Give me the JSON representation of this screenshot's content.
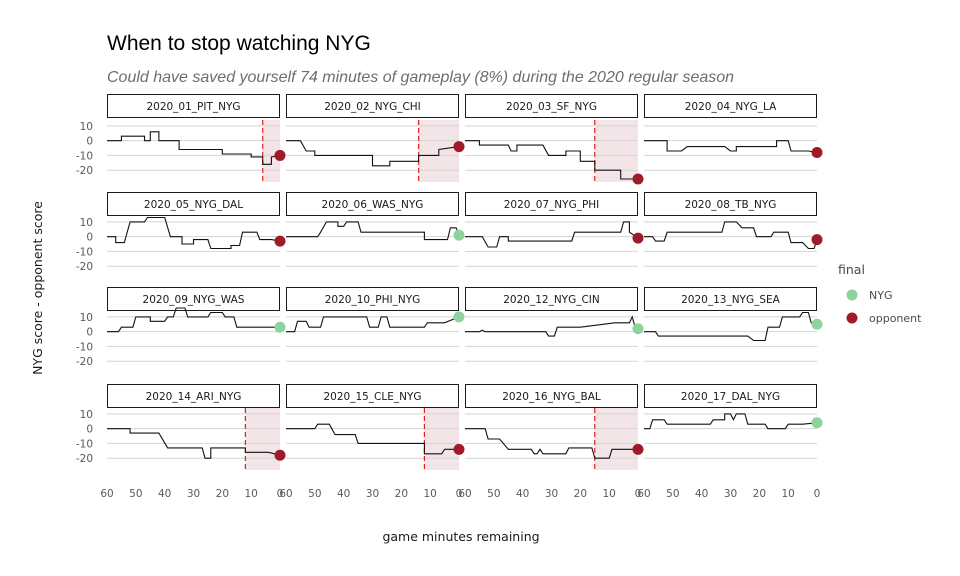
{
  "chart_data": {
    "type": "line",
    "title": "When to stop watching NYG",
    "subtitle": "Could have saved yourself 74 minutes of gameplay (8%) during the 2020 regular season",
    "xlabel": "game minutes remaining",
    "ylabel": "NYG score - opponent score",
    "xlim": [
      60,
      0
    ],
    "ylim": [
      -28,
      14
    ],
    "x_ticks": [
      60,
      50,
      40,
      30,
      20,
      10,
      0
    ],
    "y_ticks": [
      10,
      0,
      -10,
      -20
    ],
    "legend": {
      "title": "final",
      "position": "right",
      "entries": [
        {
          "label": "NYG",
          "color": "#8ed39e"
        },
        {
          "label": "opponent",
          "color": "#a01b29"
        }
      ]
    },
    "colors": {
      "line": "#111111",
      "cutoff": "#e02020",
      "shade": "#f3e4e7",
      "gridline": "#d4d4d4"
    },
    "panels": [
      {
        "name": "2020_01_PIT_NYG",
        "final": "opponent",
        "cutoff": 6,
        "points": [
          [
            60,
            0
          ],
          [
            55,
            0
          ],
          [
            55,
            3
          ],
          [
            47,
            3
          ],
          [
            47,
            0
          ],
          [
            45,
            0
          ],
          [
            45,
            6
          ],
          [
            42,
            6
          ],
          [
            42,
            0
          ],
          [
            35,
            0
          ],
          [
            35,
            -6
          ],
          [
            20,
            -6
          ],
          [
            20,
            -9
          ],
          [
            10,
            -9
          ],
          [
            10,
            -11
          ],
          [
            6,
            -11
          ],
          [
            6,
            -16
          ],
          [
            3,
            -16
          ],
          [
            3,
            -11
          ],
          [
            0,
            -10
          ]
        ]
      },
      {
        "name": "2020_02_NYG_CHI",
        "final": "opponent",
        "cutoff": 14,
        "points": [
          [
            60,
            0
          ],
          [
            55,
            0
          ],
          [
            53,
            -7
          ],
          [
            50,
            -7
          ],
          [
            50,
            -10
          ],
          [
            30,
            -10
          ],
          [
            30,
            -17
          ],
          [
            24,
            -17
          ],
          [
            24,
            -14
          ],
          [
            14,
            -14
          ],
          [
            14,
            -10
          ],
          [
            7,
            -10
          ],
          [
            7,
            -6
          ],
          [
            0,
            -4
          ]
        ]
      },
      {
        "name": "2020_03_SF_NYG",
        "final": "opponent",
        "cutoff": 15,
        "points": [
          [
            60,
            0
          ],
          [
            55,
            0
          ],
          [
            55,
            -3
          ],
          [
            45,
            -3
          ],
          [
            44,
            -7
          ],
          [
            42,
            -7
          ],
          [
            42,
            -3
          ],
          [
            33,
            -3
          ],
          [
            31,
            -10
          ],
          [
            25,
            -10
          ],
          [
            25,
            -7
          ],
          [
            20,
            -7
          ],
          [
            20,
            -14
          ],
          [
            15,
            -14
          ],
          [
            15,
            -20
          ],
          [
            6,
            -20
          ],
          [
            6,
            -26
          ],
          [
            0,
            -26
          ]
        ]
      },
      {
        "name": "2020_04_NYG_LA",
        "final": "opponent",
        "cutoff": null,
        "points": [
          [
            60,
            0
          ],
          [
            52,
            0
          ],
          [
            52,
            -7
          ],
          [
            47,
            -7
          ],
          [
            45,
            -4
          ],
          [
            32,
            -4
          ],
          [
            30,
            -7
          ],
          [
            28,
            -7
          ],
          [
            28,
            -4
          ],
          [
            14,
            -4
          ],
          [
            14,
            0
          ],
          [
            10,
            0
          ],
          [
            9,
            -7
          ],
          [
            3,
            -7
          ],
          [
            0,
            -8
          ]
        ]
      },
      {
        "name": "2020_05_NYG_DAL",
        "final": "opponent",
        "cutoff": null,
        "points": [
          [
            60,
            0
          ],
          [
            57,
            0
          ],
          [
            57,
            -4
          ],
          [
            54,
            -4
          ],
          [
            52,
            10
          ],
          [
            47,
            10
          ],
          [
            46,
            13
          ],
          [
            40,
            13
          ],
          [
            38,
            0
          ],
          [
            34,
            0
          ],
          [
            34,
            -5
          ],
          [
            30,
            -5
          ],
          [
            30,
            -2
          ],
          [
            25,
            -2
          ],
          [
            24,
            -8
          ],
          [
            17,
            -8
          ],
          [
            17,
            -6
          ],
          [
            14,
            -6
          ],
          [
            13,
            3
          ],
          [
            8,
            3
          ],
          [
            7,
            -2
          ],
          [
            3,
            -2
          ],
          [
            0,
            -3
          ]
        ]
      },
      {
        "name": "2020_06_WAS_NYG",
        "final": "NYG",
        "cutoff": null,
        "points": [
          [
            60,
            0
          ],
          [
            49,
            0
          ],
          [
            48,
            3
          ],
          [
            46,
            10
          ],
          [
            42,
            10
          ],
          [
            42,
            7
          ],
          [
            40,
            7
          ],
          [
            39,
            10
          ],
          [
            35,
            10
          ],
          [
            34,
            3
          ],
          [
            12,
            3
          ],
          [
            12,
            -2
          ],
          [
            4,
            -2
          ],
          [
            3,
            6
          ],
          [
            1,
            6
          ],
          [
            0,
            1
          ]
        ]
      },
      {
        "name": "2020_07_NYG_PHI",
        "final": "opponent",
        "cutoff": null,
        "points": [
          [
            60,
            0
          ],
          [
            54,
            0
          ],
          [
            52,
            -7
          ],
          [
            49,
            -7
          ],
          [
            48,
            0
          ],
          [
            45,
            0
          ],
          [
            45,
            -3
          ],
          [
            23,
            -3
          ],
          [
            22,
            3
          ],
          [
            6,
            3
          ],
          [
            5,
            10
          ],
          [
            3,
            10
          ],
          [
            3,
            3
          ],
          [
            0,
            -1
          ]
        ]
      },
      {
        "name": "2020_08_TB_NYG",
        "final": "opponent",
        "cutoff": null,
        "points": [
          [
            60,
            0
          ],
          [
            57,
            0
          ],
          [
            56,
            -3
          ],
          [
            53,
            -3
          ],
          [
            52,
            3
          ],
          [
            33,
            3
          ],
          [
            32,
            10
          ],
          [
            28,
            10
          ],
          [
            26,
            6
          ],
          [
            22,
            6
          ],
          [
            21,
            0
          ],
          [
            16,
            0
          ],
          [
            15,
            3
          ],
          [
            10,
            3
          ],
          [
            9,
            -4
          ],
          [
            5,
            -4
          ],
          [
            3,
            -8
          ],
          [
            1,
            -8
          ],
          [
            0,
            -2
          ]
        ]
      },
      {
        "name": "2020_09_NYG_WAS",
        "final": "NYG",
        "cutoff": null,
        "points": [
          [
            60,
            0
          ],
          [
            56,
            0
          ],
          [
            55,
            3
          ],
          [
            51,
            3
          ],
          [
            50,
            10
          ],
          [
            45,
            10
          ],
          [
            45,
            7
          ],
          [
            40,
            7
          ],
          [
            39,
            10
          ],
          [
            37,
            10
          ],
          [
            36,
            16
          ],
          [
            33,
            16
          ],
          [
            32,
            10
          ],
          [
            25,
            10
          ],
          [
            24,
            13
          ],
          [
            20,
            13
          ],
          [
            19,
            10
          ],
          [
            16,
            10
          ],
          [
            15,
            3
          ],
          [
            3,
            3
          ],
          [
            0,
            3
          ]
        ]
      },
      {
        "name": "2020_10_PHI_NYG",
        "final": "NYG",
        "cutoff": null,
        "points": [
          [
            60,
            0
          ],
          [
            57,
            0
          ],
          [
            56,
            7
          ],
          [
            53,
            7
          ],
          [
            52,
            3
          ],
          [
            48,
            3
          ],
          [
            47,
            10
          ],
          [
            32,
            10
          ],
          [
            31,
            3
          ],
          [
            28,
            3
          ],
          [
            27,
            10
          ],
          [
            25,
            10
          ],
          [
            24,
            3
          ],
          [
            12,
            3
          ],
          [
            11,
            6
          ],
          [
            5,
            6
          ],
          [
            0,
            10
          ]
        ]
      },
      {
        "name": "2020_12_NYG_CIN",
        "final": "NYG",
        "cutoff": null,
        "points": [
          [
            60,
            0
          ],
          [
            55,
            0
          ],
          [
            54,
            1
          ],
          [
            53,
            0
          ],
          [
            32,
            0
          ],
          [
            31,
            -3
          ],
          [
            29,
            -3
          ],
          [
            28,
            3
          ],
          [
            22,
            3
          ],
          [
            20,
            3
          ],
          [
            8,
            6
          ],
          [
            3,
            6
          ],
          [
            2,
            10
          ],
          [
            1,
            3
          ],
          [
            0,
            2
          ]
        ]
      },
      {
        "name": "2020_13_NYG_SEA",
        "final": "NYG",
        "cutoff": null,
        "points": [
          [
            60,
            0
          ],
          [
            56,
            0
          ],
          [
            55,
            -3
          ],
          [
            24,
            -3
          ],
          [
            22,
            -6
          ],
          [
            18,
            -6
          ],
          [
            17,
            3
          ],
          [
            13,
            3
          ],
          [
            12,
            10
          ],
          [
            6,
            10
          ],
          [
            5,
            13
          ],
          [
            3,
            13
          ],
          [
            2,
            6
          ],
          [
            0,
            5
          ]
        ]
      },
      {
        "name": "2020_14_ARI_NYG",
        "final": "opponent",
        "cutoff": 12,
        "points": [
          [
            60,
            0
          ],
          [
            52,
            0
          ],
          [
            52,
            -3
          ],
          [
            42,
            -3
          ],
          [
            39,
            -13
          ],
          [
            31,
            -13
          ],
          [
            31,
            -13
          ],
          [
            27,
            -13
          ],
          [
            26,
            -20
          ],
          [
            24,
            -20
          ],
          [
            24,
            -13
          ],
          [
            12,
            -13
          ],
          [
            12,
            -16
          ],
          [
            4,
            -16
          ],
          [
            0,
            -18
          ]
        ]
      },
      {
        "name": "2020_15_CLE_NYG",
        "final": "opponent",
        "cutoff": 12,
        "points": [
          [
            60,
            0
          ],
          [
            50,
            0
          ],
          [
            49,
            3
          ],
          [
            45,
            3
          ],
          [
            43,
            -4
          ],
          [
            36,
            -4
          ],
          [
            35,
            -10
          ],
          [
            12,
            -10
          ],
          [
            12,
            -17
          ],
          [
            6,
            -17
          ],
          [
            5,
            -14
          ],
          [
            0,
            -14
          ]
        ]
      },
      {
        "name": "2020_16_NYG_BAL",
        "final": "opponent",
        "cutoff": 15,
        "points": [
          [
            60,
            0
          ],
          [
            53,
            0
          ],
          [
            52,
            -7
          ],
          [
            48,
            -7
          ],
          [
            45,
            -14
          ],
          [
            37,
            -14
          ],
          [
            36,
            -17
          ],
          [
            35,
            -17
          ],
          [
            34,
            -14
          ],
          [
            33,
            -17
          ],
          [
            25,
            -17
          ],
          [
            24,
            -13
          ],
          [
            16,
            -13
          ],
          [
            15,
            -20
          ],
          [
            10,
            -20
          ],
          [
            9,
            -14
          ],
          [
            0,
            -14
          ]
        ]
      },
      {
        "name": "2020_17_DAL_NYG",
        "final": "NYG",
        "cutoff": null,
        "points": [
          [
            60,
            0
          ],
          [
            58,
            0
          ],
          [
            57,
            6
          ],
          [
            53,
            6
          ],
          [
            52,
            3
          ],
          [
            37,
            3
          ],
          [
            36,
            6
          ],
          [
            32,
            6
          ],
          [
            32,
            10
          ],
          [
            30,
            10
          ],
          [
            29,
            6
          ],
          [
            28,
            10
          ],
          [
            25,
            10
          ],
          [
            24,
            3
          ],
          [
            18,
            3
          ],
          [
            17,
            0
          ],
          [
            11,
            0
          ],
          [
            10,
            3
          ],
          [
            5,
            3
          ],
          [
            0,
            4
          ]
        ]
      }
    ]
  }
}
